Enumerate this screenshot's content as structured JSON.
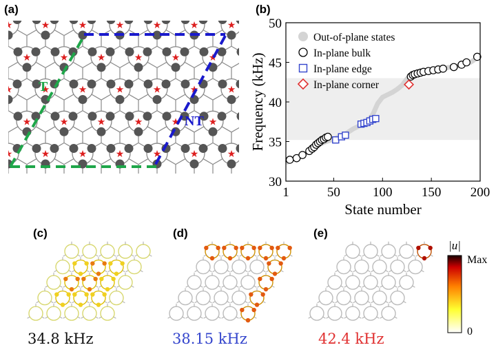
{
  "panels": {
    "a": {
      "label": "(a)",
      "label_T": "T",
      "label_NT": "NT"
    },
    "b": {
      "label": "(b)"
    },
    "c": {
      "label": "(c)",
      "freq": "34.8 kHz"
    },
    "d": {
      "label": "(d)",
      "freq": "38.15 kHz"
    },
    "e": {
      "label": "(e)",
      "freq": "42.4 kHz"
    }
  },
  "colorbar": {
    "title": "|u|",
    "max_label": "Max",
    "min_label": "0"
  },
  "colors": {
    "T": "#1fa64a",
    "NT": "#1a1acc",
    "edge": "#3344cc",
    "corner": "#e03030",
    "band": "#eeeeee",
    "node": "#555555",
    "star": "#dd1f1f"
  },
  "chart_data": {
    "type": "scatter",
    "xlabel": "State number",
    "ylabel": "Frequency (kHz)",
    "xlim": [
      1,
      200
    ],
    "ylim": [
      30,
      50
    ],
    "xticks": [
      "1",
      "50",
      "100",
      "150",
      "200"
    ],
    "yticks": [
      "30",
      "35",
      "40",
      "45",
      "50"
    ],
    "band": [
      35.2,
      43
    ],
    "legend": [
      {
        "label": "Out-of-plane states",
        "marker": "gray-disc"
      },
      {
        "label": "In-plane bulk",
        "marker": "black-circle"
      },
      {
        "label": "In-plane edge",
        "marker": "blue-square"
      },
      {
        "label": "In-plane corner",
        "marker": "red-diamond"
      }
    ],
    "legend_position": "top-left",
    "out_of_plane": {
      "x": [
        1,
        5,
        10,
        15,
        20,
        25,
        30,
        35,
        40,
        45,
        50,
        55,
        60,
        65,
        70,
        75,
        80,
        85,
        90,
        95,
        100,
        105,
        110,
        115,
        120,
        125,
        130,
        135,
        140,
        145,
        150,
        155,
        160,
        165,
        170,
        175,
        180,
        185,
        190,
        195,
        200
      ],
      "y": [
        32.3,
        32.6,
        32.9,
        33.1,
        33.4,
        33.8,
        34.2,
        34.6,
        34.9,
        35.1,
        35.3,
        35.6,
        35.8,
        36.2,
        36.6,
        36.9,
        37.2,
        37.6,
        38.4,
        39.8,
        40.6,
        40.9,
        41.2,
        41.6,
        42.1,
        42.9,
        43.5,
        43.7,
        43.8,
        43.9,
        44.0,
        44.1,
        44.2,
        44.3,
        44.4,
        44.5,
        44.6,
        44.8,
        45.0,
        45.4,
        45.9
      ]
    },
    "series": [
      {
        "name": "In-plane bulk",
        "x": [
          5,
          12,
          18,
          25,
          28,
          30,
          32,
          34,
          36,
          38,
          40,
          42,
          44,
          129,
          131,
          133,
          136,
          139,
          142,
          147,
          152,
          157,
          162,
          173,
          181,
          186,
          197
        ],
        "y": [
          32.7,
          32.9,
          33.3,
          33.8,
          34.1,
          34.3,
          34.6,
          34.8,
          35.0,
          35.2,
          35.3,
          35.5,
          35.6,
          43.2,
          43.4,
          43.5,
          43.6,
          43.7,
          43.8,
          43.9,
          44.0,
          44.1,
          44.2,
          44.4,
          44.7,
          45.0,
          45.7
        ]
      },
      {
        "name": "In-plane edge",
        "x": [
          52,
          58,
          62,
          78,
          81,
          84,
          87,
          90,
          93
        ],
        "y": [
          35.2,
          35.6,
          35.8,
          37.2,
          37.3,
          37.4,
          37.6,
          37.8,
          37.9
        ]
      },
      {
        "name": "In-plane corner",
        "x": [
          127
        ],
        "y": [
          42.2
        ]
      }
    ]
  }
}
